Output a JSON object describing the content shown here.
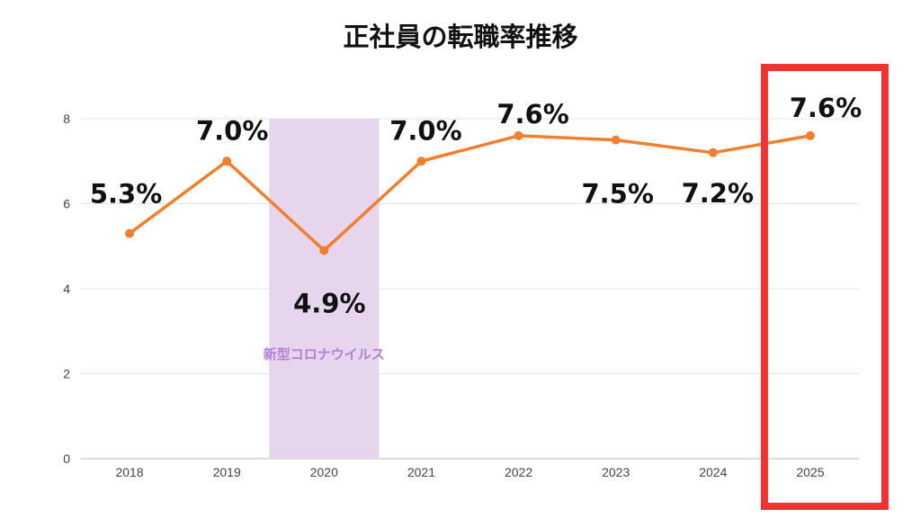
{
  "chart_data": {
    "type": "line",
    "title": "正社員の転職率推移",
    "categories": [
      "2018",
      "2019",
      "2020",
      "2021",
      "2022",
      "2023",
      "2024",
      "2025"
    ],
    "series": [
      {
        "values": [
          5.3,
          7.0,
          4.9,
          7.0,
          7.6,
          7.5,
          7.2,
          7.6
        ],
        "data_labels": [
          "5.3%",
          "7.0%",
          "4.9%",
          "7.0%",
          "7.6%",
          "7.5%",
          "7.2%",
          "7.6%"
        ],
        "color": "#f07f2e"
      }
    ],
    "ylim": [
      0,
      9
    ],
    "yticks": [
      0,
      2,
      4,
      6,
      8
    ],
    "grid": true,
    "xlabel": "",
    "ylabel": "",
    "annotations": [
      {
        "kind": "shaded-band",
        "category": "2020",
        "label": "新型コロナウイルス",
        "fill_color": "#e6d5ec",
        "text_color": "#b57fd6"
      },
      {
        "kind": "highlight-box",
        "category": "2025",
        "stroke_color": "#ee3333"
      }
    ]
  }
}
